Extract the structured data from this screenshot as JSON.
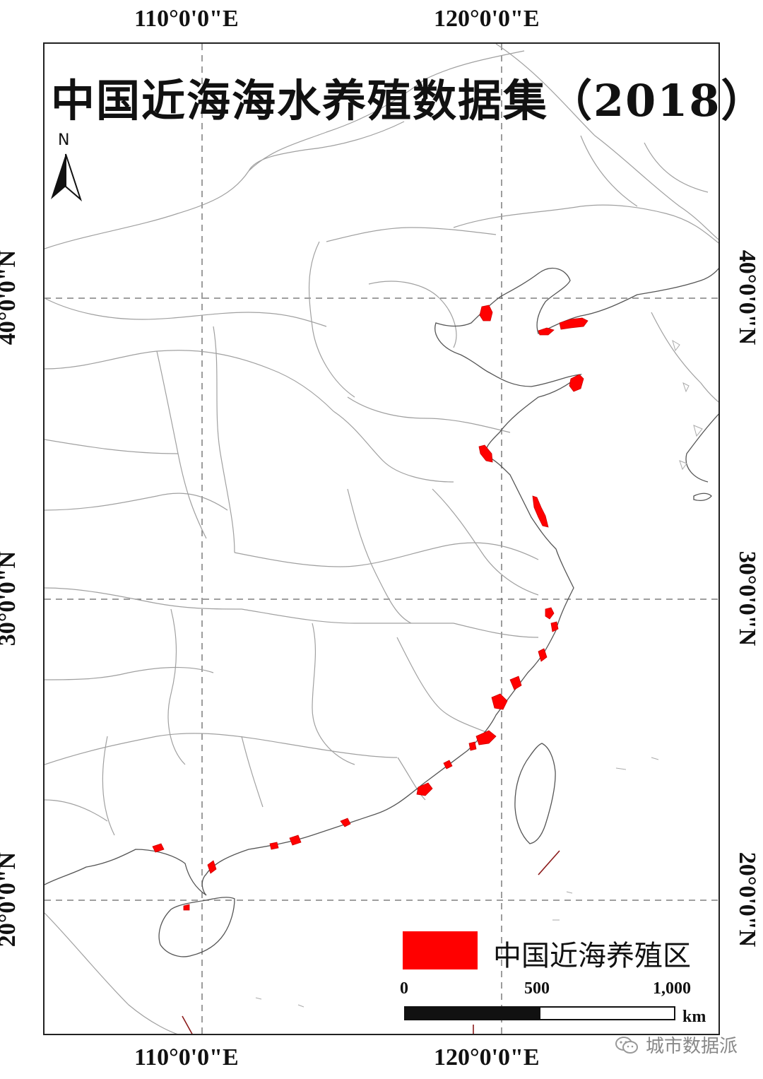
{
  "title": "中国近海海水养殖数据集（2018）",
  "graticule": {
    "lon_labels": [
      "110°0'0\"E",
      "120°0'0\"E"
    ],
    "lat_labels": [
      "40°0'0\"N",
      "30°0'0\"N",
      "20°0'0\"N"
    ]
  },
  "north_arrow": {
    "label": "N",
    "icon": "north-arrow-icon"
  },
  "legend": {
    "label": "中国近海养殖区",
    "color": "#ff0000"
  },
  "scale_bar": {
    "ticks": [
      "0",
      "500",
      "1,000"
    ],
    "unit": "km"
  },
  "watermark": {
    "text": "城市数据派",
    "icon": "wechat-icon"
  },
  "colors": {
    "aquaculture": "#ff0000",
    "boundary": "#9a9a9a",
    "coast": "#555555",
    "grid": "#666666"
  }
}
